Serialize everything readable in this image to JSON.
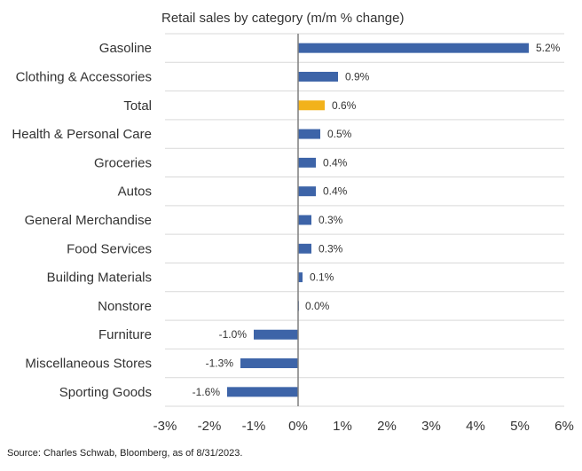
{
  "chart_data": {
    "type": "bar",
    "orientation": "horizontal",
    "title": "Retail sales by category (m/m % change)",
    "categories": [
      "Gasoline",
      "Clothing & Accessories",
      "Total",
      "Health & Personal Care",
      "Groceries",
      "Autos",
      "General Merchandise",
      "Food Services",
      "Building Materials",
      "Nonstore",
      "Furniture",
      "Miscellaneous Stores",
      "Sporting Goods"
    ],
    "values": [
      5.2,
      0.9,
      0.6,
      0.5,
      0.4,
      0.4,
      0.3,
      0.3,
      0.1,
      0.0,
      -1.0,
      -1.3,
      -1.6
    ],
    "data_labels": [
      "5.2%",
      "0.9%",
      "0.6%",
      "0.5%",
      "0.4%",
      "0.4%",
      "0.3%",
      "0.3%",
      "0.1%",
      "0.0%",
      "-1.0%",
      "-1.3%",
      "-1.6%"
    ],
    "highlight_category": "Total",
    "xlim": [
      -3,
      6
    ],
    "x_ticks": [
      -3,
      -2,
      -1,
      0,
      1,
      2,
      3,
      4,
      5,
      6
    ],
    "x_tick_labels": [
      "-3%",
      "-2%",
      "-1%",
      "0%",
      "1%",
      "2%",
      "3%",
      "4%",
      "5%",
      "6%"
    ],
    "xlabel": "",
    "ylabel": "",
    "grid": "horizontal",
    "colors": {
      "bar": "#3d64a8",
      "highlight": "#f2b21b",
      "grid": "#d9d9d9",
      "zero_line": "#7f7f7f"
    }
  },
  "footer": {
    "source": "Source: Charles Schwab, Bloomberg, as of 8/31/2023."
  }
}
